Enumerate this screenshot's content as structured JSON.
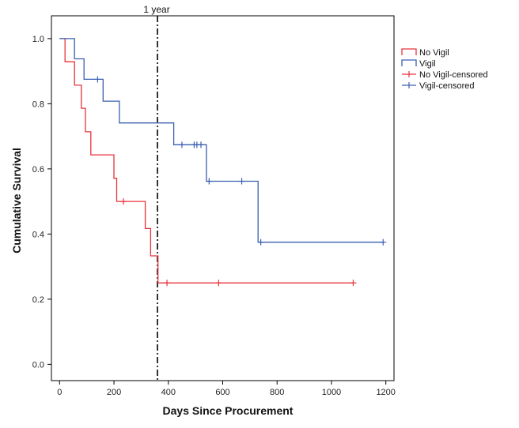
{
  "chart_data": {
    "type": "line",
    "xlabel": "Days Since Procurement",
    "ylabel": "Cumulative Survival",
    "xlim": [
      -30,
      1230
    ],
    "ylim": [
      -0.05,
      1.07
    ],
    "xticks": [
      0,
      200,
      400,
      600,
      800,
      1000,
      1200
    ],
    "yticks": [
      0.0,
      0.2,
      0.4,
      0.6,
      0.8,
      1.0
    ],
    "xtick_labels": [
      "0",
      "200",
      "400",
      "600",
      "800",
      "1000",
      "1200"
    ],
    "ytick_labels": [
      "0.0",
      "0.2",
      "0.4",
      "0.6",
      "0.8",
      "1.0"
    ],
    "grid": false,
    "legend_position": "top-right-outside",
    "annotations": [
      {
        "label": "1 year",
        "x": 360,
        "style": "dash-dot vertical line"
      }
    ],
    "series": [
      {
        "name": "No Vigil",
        "color": "#e8323c",
        "step_points": [
          [
            0,
            1.0
          ],
          [
            20,
            1.0
          ],
          [
            20,
            0.929
          ],
          [
            55,
            0.929
          ],
          [
            55,
            0.857
          ],
          [
            80,
            0.857
          ],
          [
            80,
            0.786
          ],
          [
            95,
            0.786
          ],
          [
            95,
            0.714
          ],
          [
            115,
            0.714
          ],
          [
            115,
            0.643
          ],
          [
            200,
            0.643
          ],
          [
            200,
            0.571
          ],
          [
            210,
            0.571
          ],
          [
            210,
            0.5
          ],
          [
            315,
            0.5
          ],
          [
            315,
            0.417
          ],
          [
            335,
            0.417
          ],
          [
            335,
            0.333
          ],
          [
            362,
            0.333
          ],
          [
            362,
            0.25
          ],
          [
            1080,
            0.25
          ]
        ],
        "censored": [
          [
            235,
            0.5
          ],
          [
            395,
            0.25
          ],
          [
            585,
            0.25
          ],
          [
            1080,
            0.25
          ]
        ]
      },
      {
        "name": "Vigil",
        "color": "#3a5fb0",
        "step_points": [
          [
            0,
            1.0
          ],
          [
            55,
            1.0
          ],
          [
            55,
            0.938
          ],
          [
            90,
            0.938
          ],
          [
            90,
            0.875
          ],
          [
            160,
            0.875
          ],
          [
            160,
            0.808
          ],
          [
            220,
            0.808
          ],
          [
            220,
            0.741
          ],
          [
            420,
            0.741
          ],
          [
            420,
            0.674
          ],
          [
            540,
            0.674
          ],
          [
            540,
            0.562
          ],
          [
            730,
            0.562
          ],
          [
            730,
            0.375
          ],
          [
            1190,
            0.375
          ]
        ],
        "censored": [
          [
            140,
            0.875
          ],
          [
            450,
            0.674
          ],
          [
            495,
            0.674
          ],
          [
            505,
            0.674
          ],
          [
            520,
            0.674
          ],
          [
            550,
            0.562
          ],
          [
            670,
            0.562
          ],
          [
            740,
            0.375
          ],
          [
            1190,
            0.375
          ]
        ]
      }
    ],
    "legend": [
      {
        "label": "No Vigil",
        "color": "#e8323c",
        "kind": "line"
      },
      {
        "label": "Vigil",
        "color": "#3a5fb0",
        "kind": "line"
      },
      {
        "label": "No Vigil-censored",
        "color": "#e8323c",
        "kind": "censored"
      },
      {
        "label": "Vigil-censored",
        "color": "#3a5fb0",
        "kind": "censored"
      }
    ]
  }
}
